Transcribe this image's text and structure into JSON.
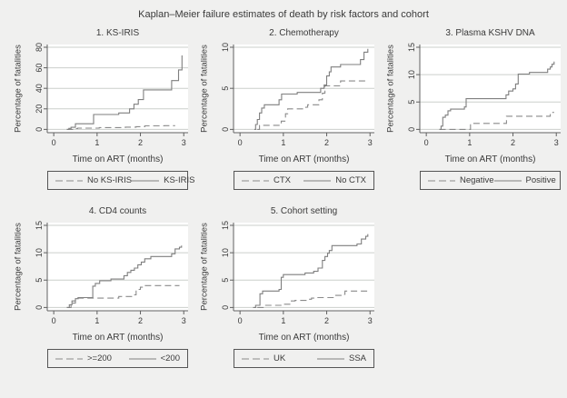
{
  "title": "Kaplan–Meier failure estimates of death by risk factors and cohort",
  "colors": {
    "background": "#f0f0ef",
    "plot_background": "#ffffff",
    "grid_line": "#cbcfcb",
    "axis_line": "#606060",
    "solid_line": "#7f7f7f",
    "dashed_line": "#8a8a8a",
    "text": "#3a3a3a",
    "legend_border": "#555555"
  },
  "chart_data": [
    {
      "type": "line",
      "subtype": "step",
      "title": "1. KS-IRIS",
      "xlabel": "Time on ART (months)",
      "ylabel": "Percentage of fatalities",
      "xticks": [
        0,
        1,
        2,
        3
      ],
      "yticks": [
        0,
        20,
        40,
        60,
        80
      ],
      "xlim": [
        -0.15,
        3.1
      ],
      "ylim": [
        0,
        80
      ],
      "grid": "horizontal",
      "legend_position": "bottom",
      "series": [
        {
          "name": "No KS-IRIS",
          "style": "dashed",
          "points": [
            [
              0.3,
              0
            ],
            [
              0.45,
              0.8
            ],
            [
              0.55,
              1.2
            ],
            [
              1.0,
              1.2
            ],
            [
              1.05,
              1.8
            ],
            [
              1.6,
              1.8
            ],
            [
              1.65,
              2.2
            ],
            [
              1.9,
              2.6
            ],
            [
              2.1,
              3.4
            ],
            [
              2.5,
              3.4
            ],
            [
              2.55,
              3.6
            ],
            [
              2.8,
              3.6
            ]
          ]
        },
        {
          "name": "KS-IRIS",
          "style": "solid",
          "points": [
            [
              0.3,
              0
            ],
            [
              0.35,
              1
            ],
            [
              0.4,
              2
            ],
            [
              0.5,
              5.5
            ],
            [
              0.9,
              5.5
            ],
            [
              0.92,
              14.5
            ],
            [
              1.45,
              14.5
            ],
            [
              1.5,
              16
            ],
            [
              1.72,
              16
            ],
            [
              1.75,
              20
            ],
            [
              1.85,
              24.5
            ],
            [
              1.95,
              29
            ],
            [
              2.07,
              38.5
            ],
            [
              2.7,
              38.5
            ],
            [
              2.72,
              47.5
            ],
            [
              2.87,
              47.5
            ],
            [
              2.88,
              58
            ],
            [
              2.95,
              58
            ],
            [
              2.96,
              72
            ]
          ]
        }
      ]
    },
    {
      "type": "line",
      "subtype": "step",
      "title": "2. Chemotherapy",
      "xlabel": "Time on ART (months)",
      "ylabel": "Percentage of fatalities",
      "xticks": [
        0,
        1,
        2,
        3
      ],
      "yticks": [
        0,
        5,
        10
      ],
      "xlim": [
        -0.15,
        3.1
      ],
      "ylim": [
        0,
        10
      ],
      "grid": "horizontal",
      "legend_position": "bottom",
      "series": [
        {
          "name": "CTX",
          "style": "dashed",
          "points": [
            [
              0.4,
              0
            ],
            [
              0.45,
              0.5
            ],
            [
              0.9,
              0.5
            ],
            [
              0.95,
              1.0
            ],
            [
              1.05,
              1.9
            ],
            [
              1.1,
              2.5
            ],
            [
              1.48,
              2.5
            ],
            [
              1.52,
              2.7
            ],
            [
              1.56,
              3.0
            ],
            [
              1.78,
              3.0
            ],
            [
              1.82,
              3.6
            ],
            [
              1.9,
              4.4
            ],
            [
              1.96,
              5.3
            ],
            [
              2.28,
              5.3
            ],
            [
              2.32,
              5.9
            ],
            [
              2.95,
              5.9
            ]
          ]
        },
        {
          "name": "No CTX",
          "style": "solid",
          "points": [
            [
              0.33,
              0
            ],
            [
              0.36,
              0.6
            ],
            [
              0.4,
              1.2
            ],
            [
              0.45,
              2.0
            ],
            [
              0.5,
              2.6
            ],
            [
              0.56,
              3.0
            ],
            [
              0.88,
              3.0
            ],
            [
              0.9,
              3.6
            ],
            [
              0.96,
              4.3
            ],
            [
              1.28,
              4.3
            ],
            [
              1.32,
              4.5
            ],
            [
              1.84,
              4.5
            ],
            [
              1.86,
              5.0
            ],
            [
              1.94,
              5.4
            ],
            [
              2.0,
              6.5
            ],
            [
              2.06,
              7.0
            ],
            [
              2.1,
              7.6
            ],
            [
              2.28,
              7.6
            ],
            [
              2.32,
              7.9
            ],
            [
              2.74,
              7.9
            ],
            [
              2.78,
              8.5
            ],
            [
              2.86,
              9.4
            ],
            [
              2.95,
              9.8
            ]
          ]
        }
      ]
    },
    {
      "type": "line",
      "subtype": "step",
      "title": "3. Plasma KSHV DNA",
      "xlabel": "Time on ART (months)",
      "ylabel": "Percentage of fatalities",
      "xticks": [
        0,
        1,
        2,
        3
      ],
      "yticks": [
        0,
        5,
        10,
        15
      ],
      "xlim": [
        -0.15,
        3.1
      ],
      "ylim": [
        0,
        15
      ],
      "grid": "horizontal",
      "legend_position": "bottom",
      "series": [
        {
          "name": "Negative",
          "style": "dashed",
          "points": [
            [
              0.3,
              0
            ],
            [
              0.98,
              0
            ],
            [
              1.02,
              1.1
            ],
            [
              1.8,
              1.1
            ],
            [
              1.85,
              2.4
            ],
            [
              2.82,
              2.4
            ],
            [
              2.86,
              3.1
            ],
            [
              2.95,
              3.1
            ]
          ]
        },
        {
          "name": "Positive",
          "style": "solid",
          "points": [
            [
              0.3,
              0
            ],
            [
              0.34,
              0.6
            ],
            [
              0.38,
              2.2
            ],
            [
              0.44,
              2.6
            ],
            [
              0.5,
              3.4
            ],
            [
              0.56,
              3.7
            ],
            [
              0.84,
              3.7
            ],
            [
              0.88,
              4.1
            ],
            [
              0.92,
              5.6
            ],
            [
              1.8,
              5.6
            ],
            [
              1.84,
              6.3
            ],
            [
              1.9,
              7.0
            ],
            [
              2.0,
              7.4
            ],
            [
              2.06,
              8.3
            ],
            [
              2.12,
              10.1
            ],
            [
              2.34,
              10.1
            ],
            [
              2.38,
              10.4
            ],
            [
              2.76,
              10.4
            ],
            [
              2.8,
              11.0
            ],
            [
              2.86,
              11.4
            ],
            [
              2.9,
              11.9
            ],
            [
              2.95,
              12.4
            ]
          ]
        }
      ]
    },
    {
      "type": "line",
      "subtype": "step",
      "title": "4. CD4 counts",
      "xlabel": "Time on ART (months)",
      "ylabel": "Percentage of fatalities",
      "xticks": [
        0,
        1,
        2,
        3
      ],
      "yticks": [
        0,
        5,
        10,
        15
      ],
      "xlim": [
        -0.15,
        3.1
      ],
      "ylim": [
        0,
        15
      ],
      "grid": "horizontal",
      "legend_position": "bottom",
      "series": [
        {
          "name": ">=200",
          "style": "dashed",
          "points": [
            [
              0.3,
              0
            ],
            [
              0.4,
              0.8
            ],
            [
              0.5,
              1.6
            ],
            [
              0.56,
              1.7
            ],
            [
              1.46,
              1.7
            ],
            [
              1.5,
              2.0
            ],
            [
              1.78,
              2.0
            ],
            [
              1.82,
              2.3
            ],
            [
              1.9,
              3.3
            ],
            [
              2.0,
              3.7
            ],
            [
              2.1,
              4.0
            ],
            [
              2.9,
              4.0
            ]
          ]
        },
        {
          "name": "<200",
          "style": "solid",
          "points": [
            [
              0.3,
              0
            ],
            [
              0.36,
              0.5
            ],
            [
              0.42,
              1.2
            ],
            [
              0.5,
              1.6
            ],
            [
              0.56,
              1.8
            ],
            [
              0.86,
              1.8
            ],
            [
              0.9,
              3.9
            ],
            [
              0.96,
              4.4
            ],
            [
              1.06,
              4.9
            ],
            [
              1.28,
              4.9
            ],
            [
              1.32,
              5.2
            ],
            [
              1.58,
              5.2
            ],
            [
              1.62,
              5.8
            ],
            [
              1.7,
              6.4
            ],
            [
              1.78,
              6.8
            ],
            [
              1.86,
              7.2
            ],
            [
              1.94,
              7.8
            ],
            [
              2.02,
              8.3
            ],
            [
              2.1,
              8.9
            ],
            [
              2.24,
              9.3
            ],
            [
              2.68,
              9.3
            ],
            [
              2.72,
              9.8
            ],
            [
              2.8,
              10.7
            ],
            [
              2.9,
              11.0
            ],
            [
              2.95,
              11.3
            ]
          ]
        }
      ]
    },
    {
      "type": "line",
      "subtype": "step",
      "title": "5. Cohort setting",
      "xlabel": "Time on ART (months)",
      "ylabel": "Percentage of fatalities",
      "xticks": [
        0,
        1,
        2,
        3
      ],
      "yticks": [
        0,
        5,
        10,
        15
      ],
      "xlim": [
        -0.15,
        3.1
      ],
      "ylim": [
        0,
        15
      ],
      "grid": "horizontal",
      "legend_position": "bottom",
      "series": [
        {
          "name": "UK",
          "style": "dashed",
          "points": [
            [
              0.4,
              0
            ],
            [
              0.55,
              0.4
            ],
            [
              0.93,
              0.4
            ],
            [
              0.97,
              0.6
            ],
            [
              1.15,
              1.2
            ],
            [
              1.27,
              1.3
            ],
            [
              1.55,
              1.5
            ],
            [
              1.65,
              1.7
            ],
            [
              1.75,
              1.8
            ],
            [
              2.12,
              1.8
            ],
            [
              2.17,
              2.2
            ],
            [
              2.35,
              2.4
            ],
            [
              2.42,
              3.0
            ],
            [
              2.95,
              3.0
            ]
          ]
        },
        {
          "name": "SSA",
          "style": "solid",
          "points": [
            [
              0.3,
              0
            ],
            [
              0.36,
              0.4
            ],
            [
              0.46,
              2.5
            ],
            [
              0.52,
              3.0
            ],
            [
              0.86,
              3.0
            ],
            [
              0.9,
              3.3
            ],
            [
              0.95,
              5.5
            ],
            [
              1.0,
              6.0
            ],
            [
              1.44,
              6.0
            ],
            [
              1.5,
              6.3
            ],
            [
              1.7,
              6.6
            ],
            [
              1.8,
              7.2
            ],
            [
              1.9,
              8.6
            ],
            [
              1.96,
              9.3
            ],
            [
              2.02,
              9.9
            ],
            [
              2.06,
              10.4
            ],
            [
              2.12,
              11.3
            ],
            [
              2.64,
              11.3
            ],
            [
              2.7,
              11.6
            ],
            [
              2.8,
              12.5
            ],
            [
              2.9,
              13.0
            ],
            [
              2.95,
              13.4
            ]
          ]
        }
      ]
    }
  ]
}
